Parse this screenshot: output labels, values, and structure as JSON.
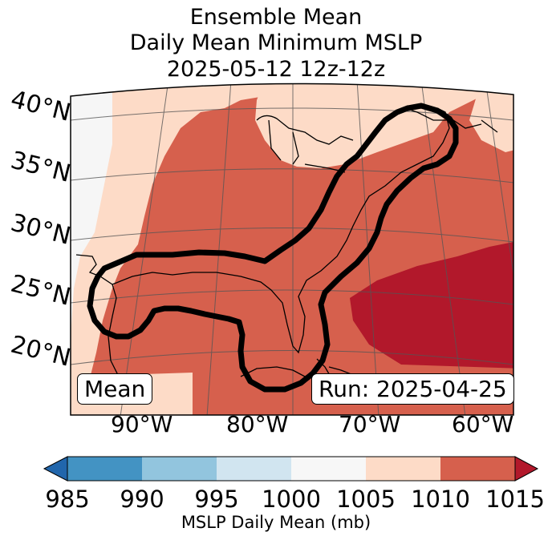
{
  "title": {
    "line1": "Ensemble Mean",
    "line2": "Daily Mean Minimum MSLP",
    "line3": "2025-05-12 12z-12z"
  },
  "map": {
    "lat_labels": [
      "40°N",
      "35°N",
      "30°N",
      "25°N",
      "20°N"
    ],
    "lon_labels": [
      "90°W",
      "80°W",
      "70°W",
      "60°W"
    ],
    "left_box": "Mean",
    "right_box": "Run: 2025-04-25",
    "pressure_fields": [
      {
        "region": "far west edge",
        "level_mb": "1000-1005",
        "color": "#f6f6f6"
      },
      {
        "region": "west band",
        "level_mb": "1005-1010",
        "color": "#fddbc7"
      },
      {
        "region": "central & eastern",
        "level_mb": "1010-1015",
        "color": "#d6604d"
      },
      {
        "region": "atlantic southeast",
        "level_mb": ">1015",
        "color": "#b2182b"
      }
    ],
    "contour": "Gulf of Mexico to New England outline"
  },
  "colorbar": {
    "ticks": [
      "985",
      "990",
      "995",
      "1000",
      "1005",
      "1010",
      "1015"
    ],
    "label": "MSLP Daily Mean (mb)",
    "colors": [
      "#2166ac",
      "#4393c3",
      "#92c5de",
      "#d1e5f0",
      "#f7f7f7",
      "#fddbc7",
      "#d6604d",
      "#b2182b"
    ]
  }
}
